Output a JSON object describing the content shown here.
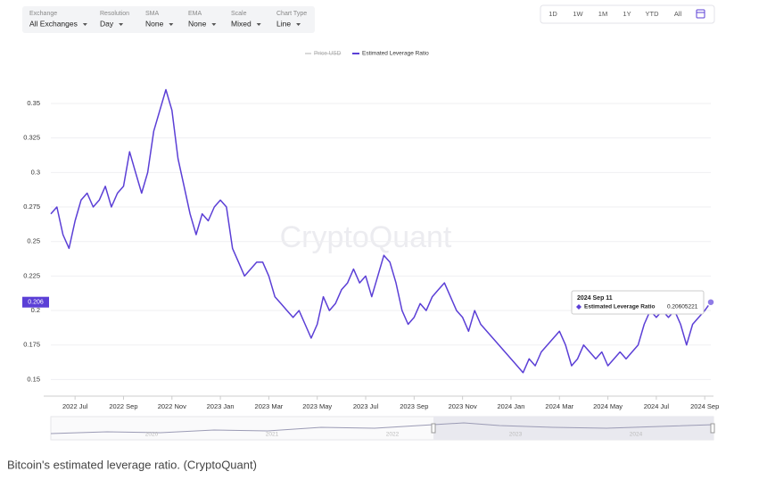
{
  "toolbar": {
    "dropdowns": [
      {
        "label": "Exchange",
        "value": "All Exchanges"
      },
      {
        "label": "Resolution",
        "value": "Day"
      },
      {
        "label": "SMA",
        "value": "None"
      },
      {
        "label": "EMA",
        "value": "None"
      },
      {
        "label": "Scale",
        "value": "Mixed"
      },
      {
        "label": "Chart Type",
        "value": "Line"
      }
    ],
    "range_buttons": [
      "1D",
      "1W",
      "1M",
      "1Y",
      "YTD",
      "All"
    ]
  },
  "watermark": "CryptoQuant",
  "caption": "Bitcoin's estimated leverage ratio. (CryptoQuant)",
  "navigator_labels": [
    "2020",
    "2021",
    "2022",
    "2023",
    "2024"
  ],
  "chart_data": {
    "type": "line",
    "hidden_series": [
      "Price USD"
    ],
    "categories": [
      null,
      null,
      null,
      null,
      "2022 Jul",
      null,
      null,
      null,
      null,
      null,
      null,
      null,
      "2022 Sep",
      null,
      null,
      null,
      null,
      null,
      null,
      null,
      "2022 Nov",
      null,
      null,
      null,
      null,
      null,
      null,
      null,
      "2023 Jan",
      null,
      null,
      null,
      null,
      null,
      null,
      null,
      "2023 Mar",
      null,
      null,
      null,
      null,
      null,
      null,
      null,
      "2023 May",
      null,
      null,
      null,
      null,
      null,
      null,
      null,
      "2023 Jul",
      null,
      null,
      null,
      null,
      null,
      null,
      null,
      "2023 Sep",
      null,
      null,
      null,
      null,
      null,
      null,
      null,
      "2023 Nov",
      null,
      null,
      null,
      null,
      null,
      null,
      null,
      "2024 Jan",
      null,
      null,
      null,
      null,
      null,
      null,
      null,
      "2024 Mar",
      null,
      null,
      null,
      null,
      null,
      null,
      null,
      "2024 May",
      null,
      null,
      null,
      null,
      null,
      null,
      null,
      "2024 Jul",
      null,
      null,
      null,
      null,
      null,
      null,
      null,
      "2024 Sep",
      null
    ],
    "series": [
      {
        "name": "Estimated Leverage Ratio",
        "color": "#5b3fd6",
        "values": [
          0.27,
          0.275,
          0.255,
          0.245,
          0.265,
          0.28,
          0.285,
          0.275,
          0.28,
          0.29,
          0.275,
          0.285,
          0.29,
          0.315,
          0.3,
          0.285,
          0.3,
          0.33,
          0.345,
          0.36,
          0.345,
          0.31,
          0.29,
          0.27,
          0.255,
          0.27,
          0.265,
          0.275,
          0.28,
          0.275,
          0.245,
          0.235,
          0.225,
          0.23,
          0.235,
          0.235,
          0.225,
          0.21,
          0.205,
          0.2,
          0.195,
          0.2,
          0.19,
          0.18,
          0.19,
          0.21,
          0.2,
          0.205,
          0.215,
          0.22,
          0.23,
          0.22,
          0.225,
          0.21,
          0.225,
          0.24,
          0.235,
          0.22,
          0.2,
          0.19,
          0.195,
          0.205,
          0.2,
          0.21,
          0.215,
          0.22,
          0.21,
          0.2,
          0.195,
          0.185,
          0.2,
          0.19,
          0.185,
          0.18,
          0.175,
          0.17,
          0.165,
          0.16,
          0.155,
          0.165,
          0.16,
          0.17,
          0.175,
          0.18,
          0.185,
          0.175,
          0.16,
          0.165,
          0.175,
          0.17,
          0.165,
          0.17,
          0.16,
          0.165,
          0.17,
          0.165,
          0.17,
          0.175,
          0.19,
          0.2,
          0.195,
          0.2,
          0.195,
          0.2,
          0.19,
          0.175,
          0.19,
          0.195,
          0.2,
          0.20605221
        ]
      }
    ],
    "axis_marker_label": "0.206",
    "tooltip": {
      "date": "2024 Sep 11"
    },
    "ylim": [
      0.138,
      0.37
    ],
    "yticks": [
      0.15,
      0.175,
      0.2,
      0.225,
      0.25,
      0.275,
      0.3,
      0.325,
      0.35
    ],
    "grid": true
  }
}
